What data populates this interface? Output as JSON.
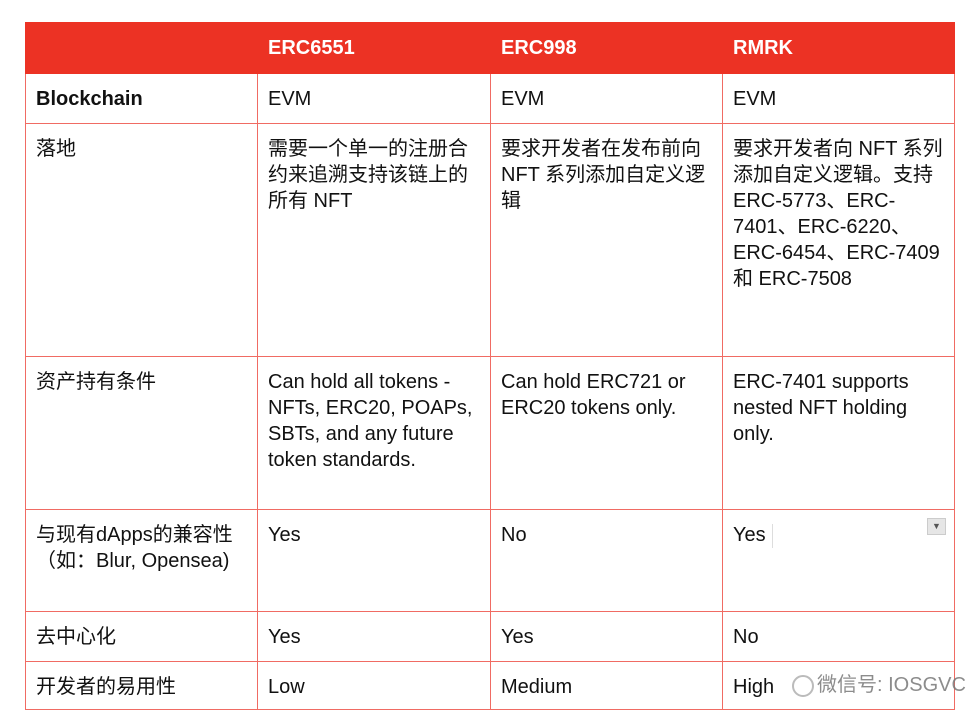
{
  "columns": [
    "",
    "ERC6551",
    "ERC998",
    "RMRK"
  ],
  "rows": [
    {
      "label": "Blockchain",
      "cells": [
        "EVM",
        "EVM",
        "EVM"
      ]
    },
    {
      "label": "落地",
      "cells": [
        "需要一个单一的注册合约来追溯支持该链上的所有 NFT",
        "要求开发者在发布前向 NFT 系列添加自定义逻辑",
        "要求开发者向 NFT 系列 添加自定义逻辑。支持ERC-5773、ERC-7401、ERC-6220、ERC-6454、ERC-7409 和 ERC-7508"
      ]
    },
    {
      "label": "资产持有条件",
      "cells": [
        "Can hold all tokens - NFTs, ERC20, POAPs, SBTs, and any future token standards.",
        "Can hold ERC721 or ERC20 tokens only.",
        "ERC-7401 supports nested NFT holding only."
      ]
    },
    {
      "label": "与现有dApps的兼容性（如：Blur, Opensea)",
      "cells": [
        "Yes",
        "No",
        "Yes"
      ]
    },
    {
      "label": "去中心化",
      "cells": [
        "Yes",
        "Yes",
        "No"
      ]
    },
    {
      "label": "开发者的易用性",
      "cells": [
        "Low",
        "Medium",
        "High"
      ]
    }
  ],
  "watermark": "微信号: IOSGVC",
  "colors": {
    "header_bg": "#ec3224",
    "border": "#f06b63"
  }
}
